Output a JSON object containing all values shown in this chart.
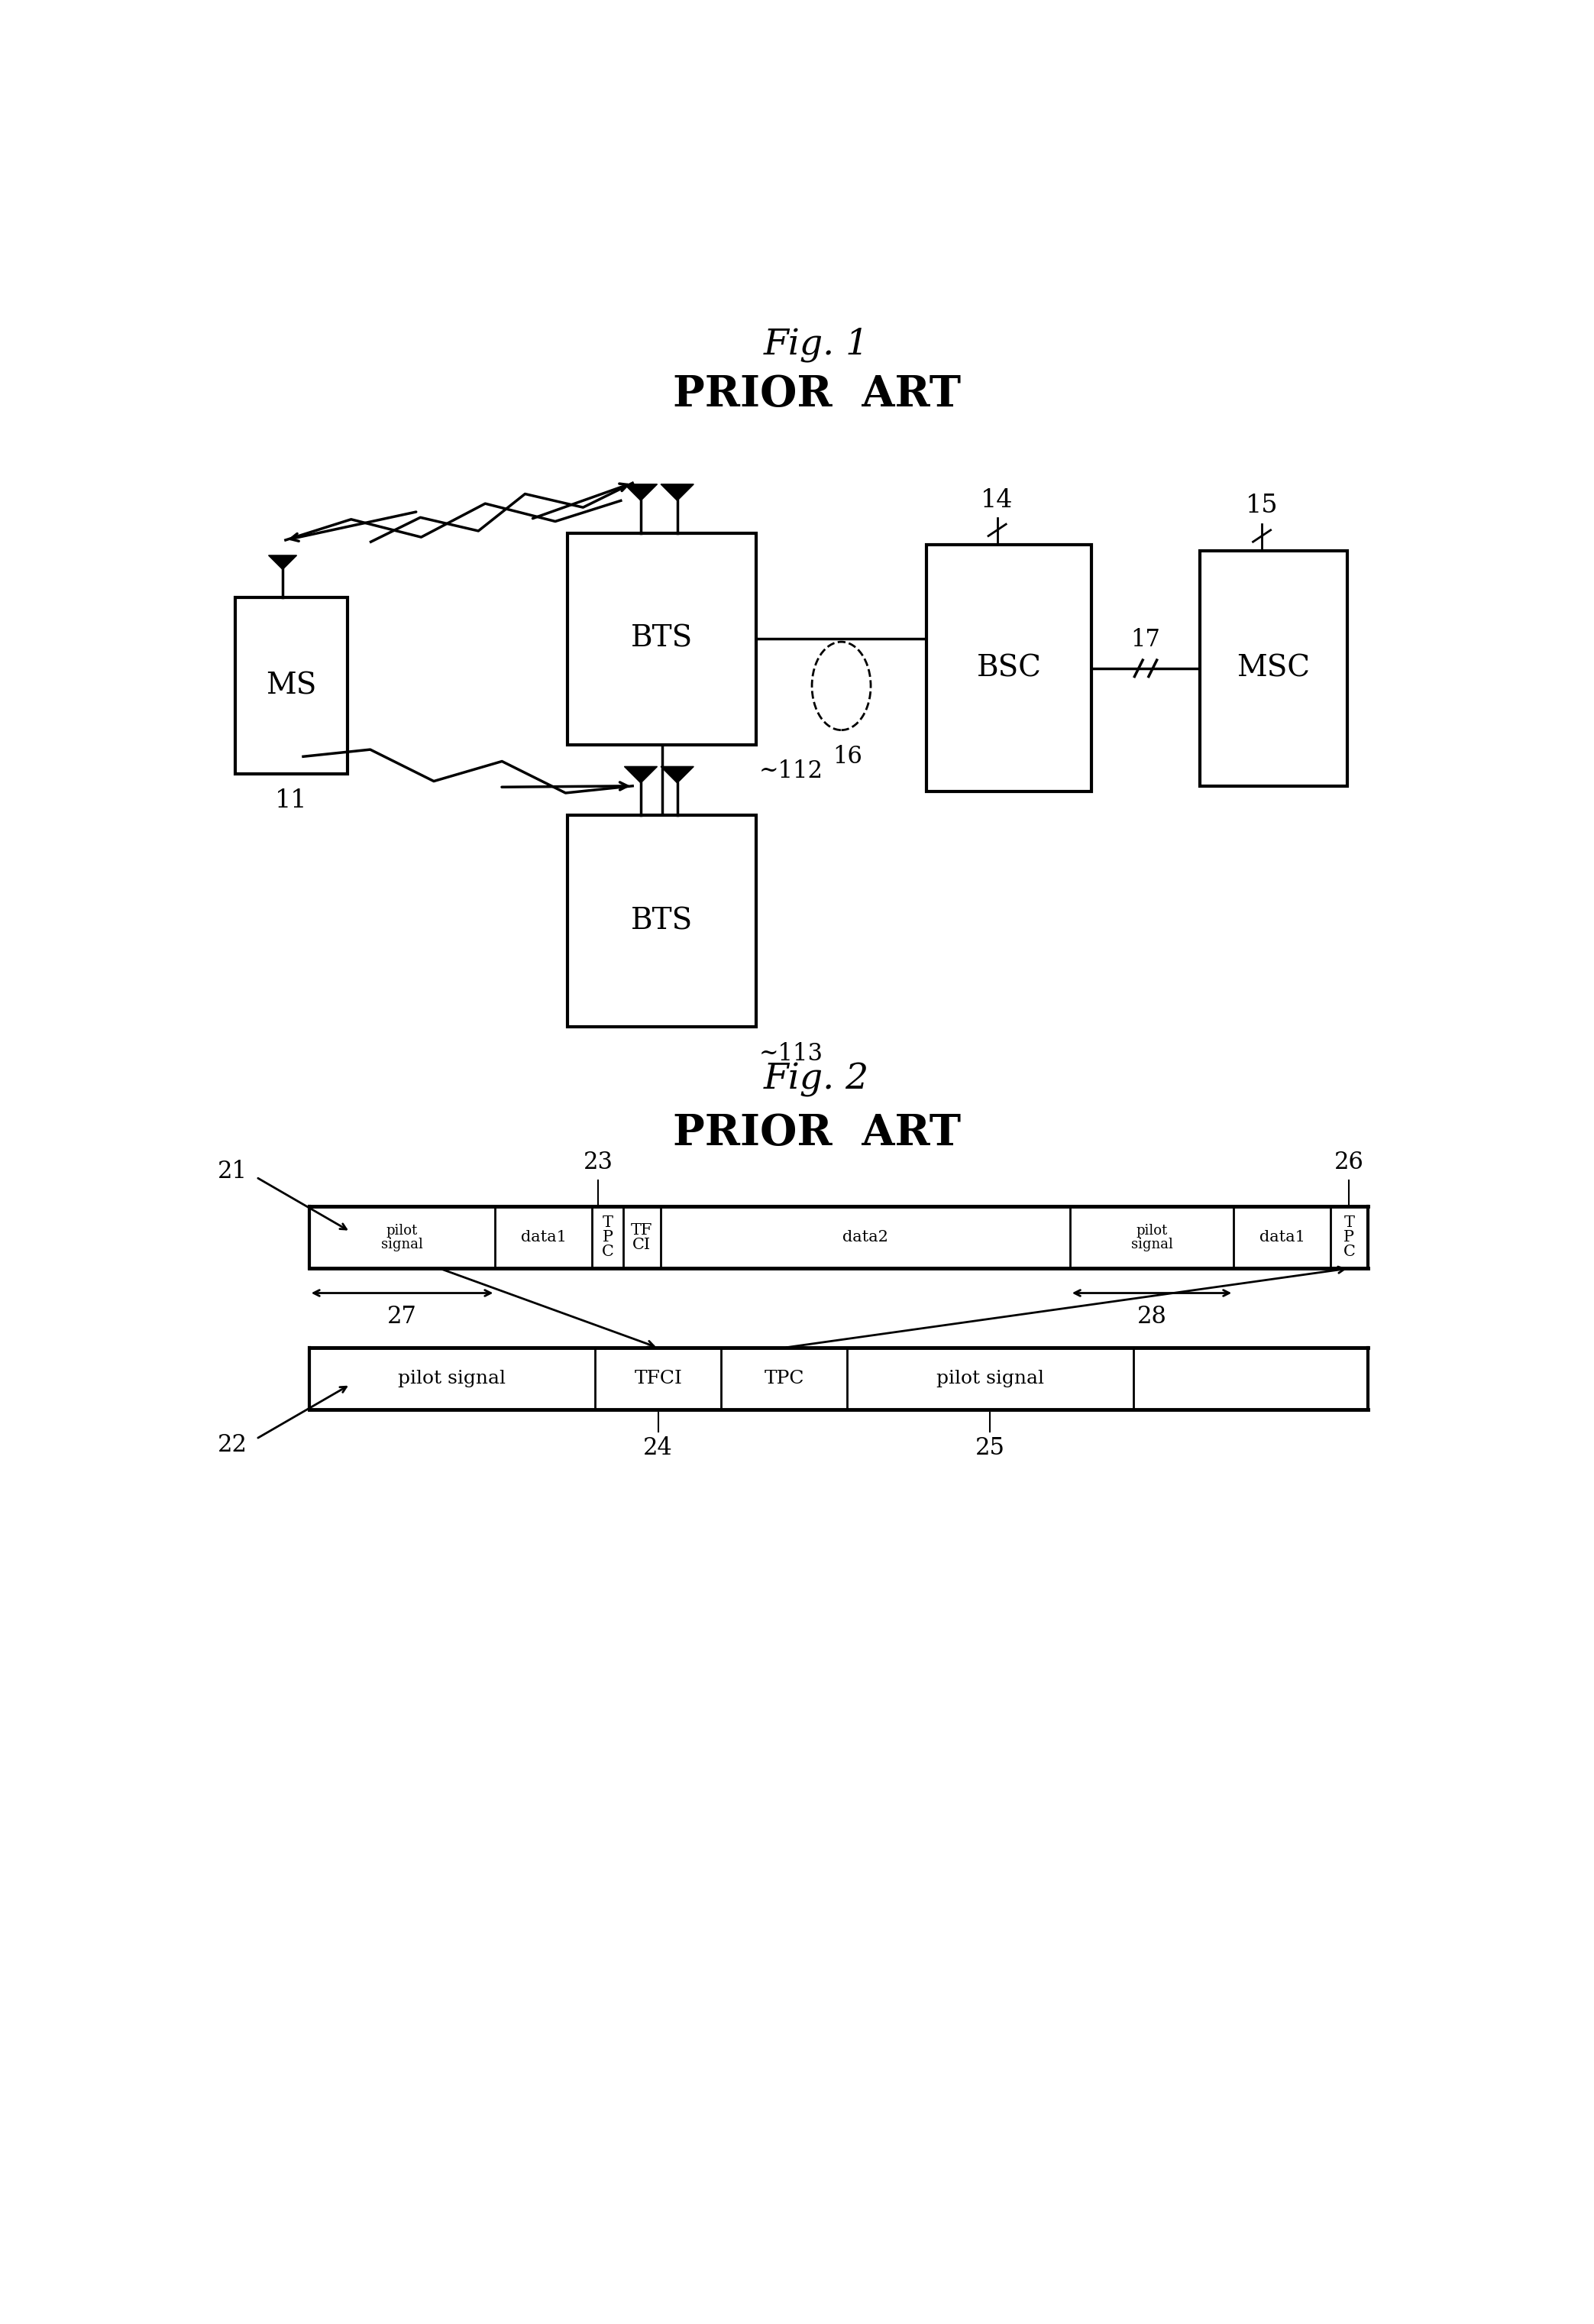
{
  "fig1_title": "Fig. 1",
  "fig1_subtitle": "PRIOR  ART",
  "fig2_title": "Fig. 2",
  "fig2_subtitle": "PRIOR  ART",
  "bg_color": "#ffffff",
  "line_color": "#000000",
  "font_family": "DejaVu Serif",
  "ms_label": "MS",
  "ms_num": "11",
  "bts1_label": "BTS",
  "bts1_num": "112",
  "bts2_label": "BTS",
  "bts2_num": "113",
  "bsc_label": "BSC",
  "bsc_num": "14",
  "msc_label": "MSC",
  "msc_num": "15",
  "node16": "16",
  "node17": "17",
  "frame1_label": "21",
  "frame2_label": "22",
  "label23": "23",
  "label24": "24",
  "label25": "25",
  "label26": "26",
  "label27": "27",
  "label28": "28",
  "seg1": [
    "pilot\nsignal",
    "data1",
    "T\nP\nC",
    "TF\nCI",
    "data2",
    "pilot\nsignal",
    "data1",
    "T\nP\nC"
  ],
  "seg1_w": [
    2.5,
    1.3,
    0.42,
    0.5,
    5.5,
    2.2,
    1.3,
    0.5
  ],
  "seg2": [
    "pilot signal",
    "TFCI",
    "TPC",
    "pilot signal",
    ""
  ],
  "seg2_w": [
    5.0,
    2.2,
    2.2,
    5.0,
    4.1
  ]
}
